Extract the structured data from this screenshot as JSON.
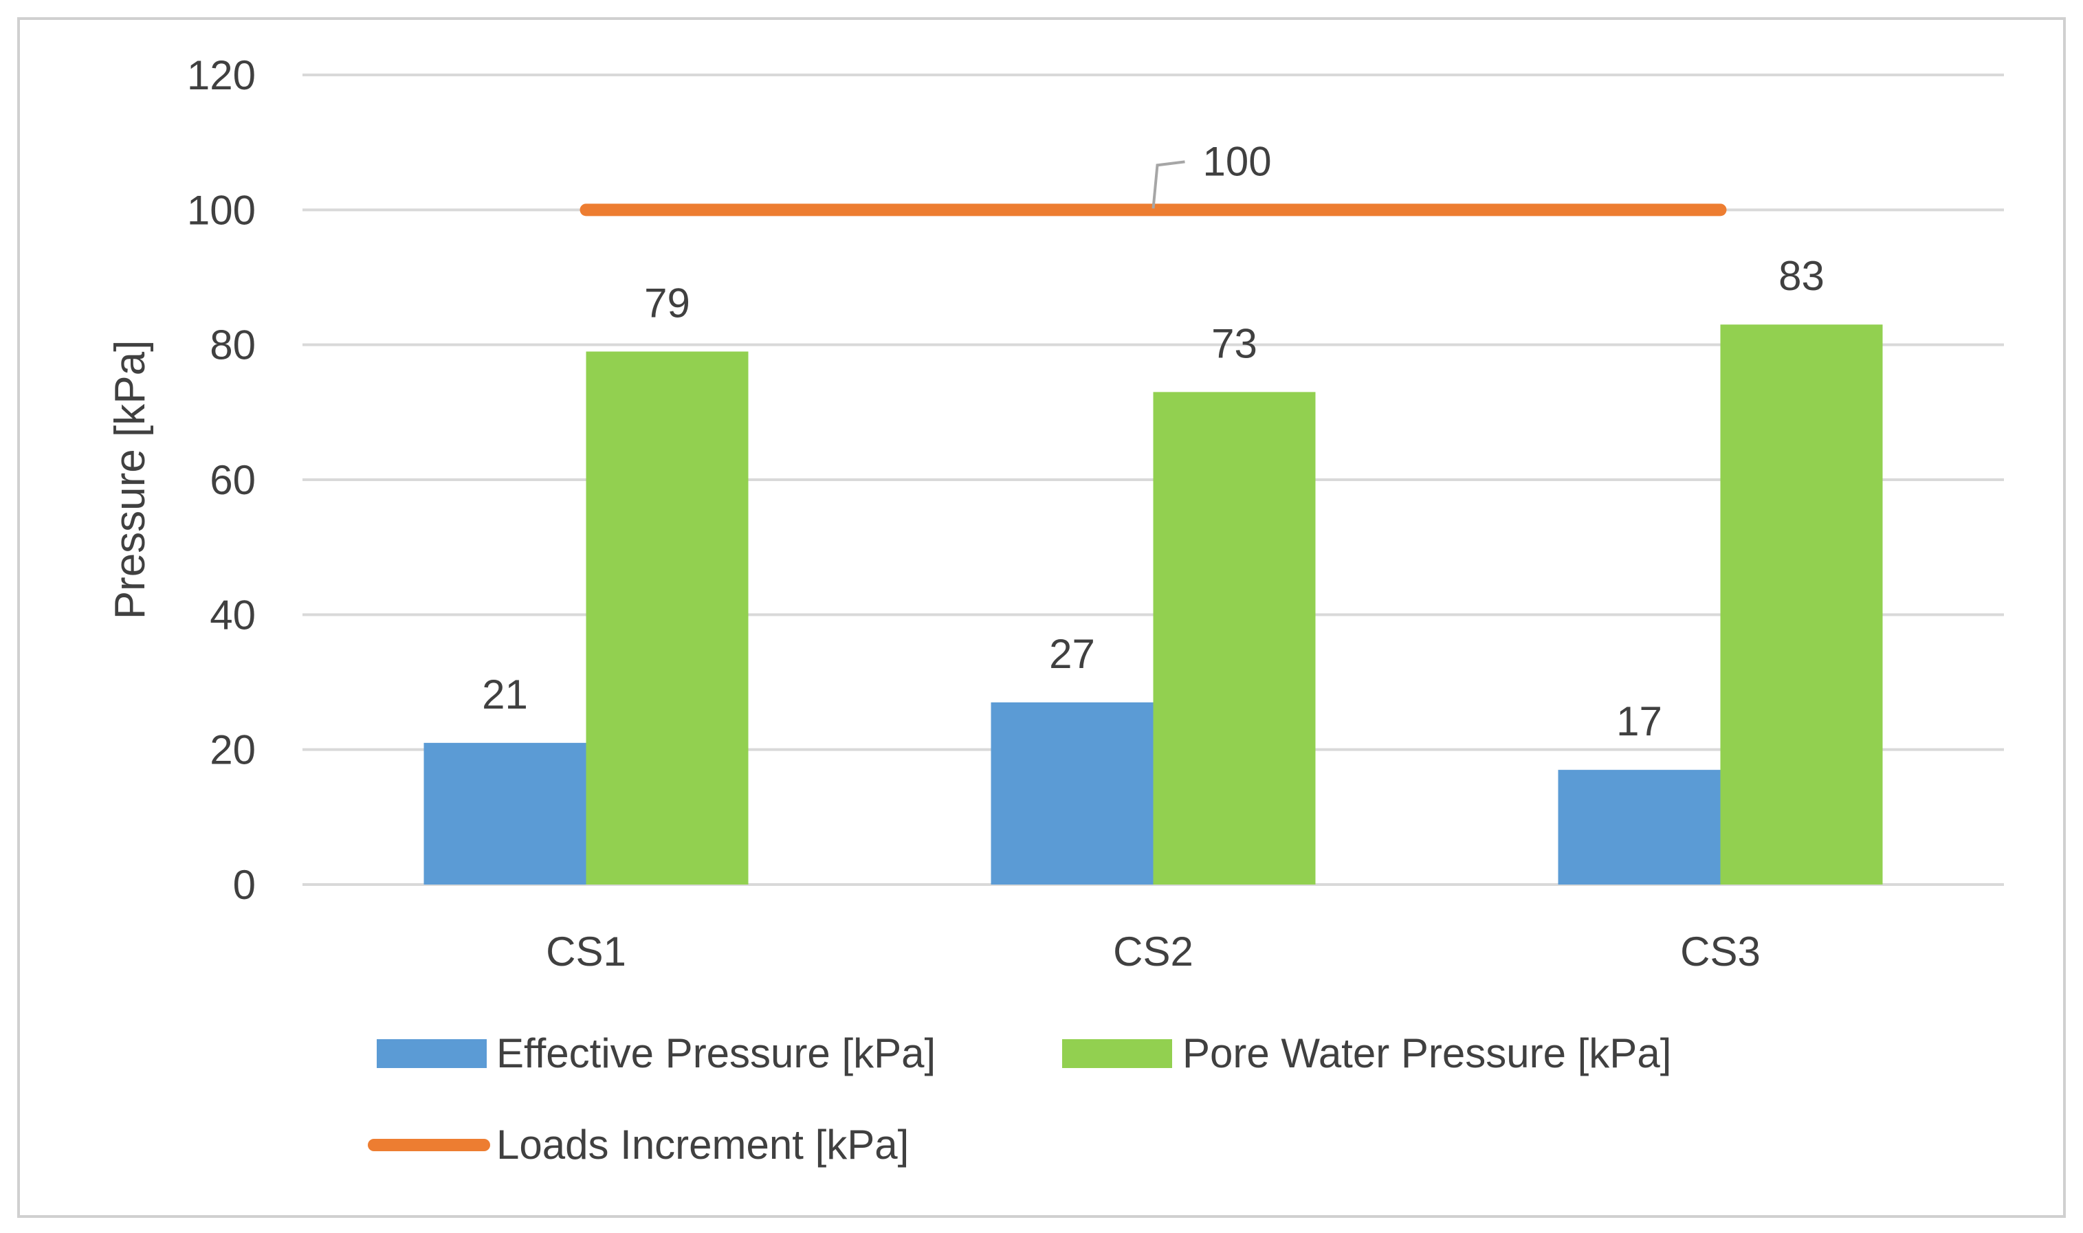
{
  "chart_data": {
    "type": "bar",
    "title": "",
    "xlabel": "",
    "ylabel": "Pressure [kPa]",
    "ylim": [
      0,
      120
    ],
    "yticks": [
      0,
      20,
      40,
      60,
      80,
      100,
      120
    ],
    "grid": true,
    "legend_position": "bottom",
    "categories": [
      "CS1",
      "CS2",
      "CS3"
    ],
    "series": [
      {
        "name": "Effective Pressure [kPa]",
        "kind": "bar",
        "color": "#5B9BD5",
        "values": [
          21,
          27,
          17
        ],
        "labels": [
          "21",
          "27",
          "17"
        ]
      },
      {
        "name": "Pore Water Pressure [kPa]",
        "kind": "bar",
        "color": "#92D050",
        "values": [
          79,
          73,
          83
        ],
        "labels": [
          "79",
          "73",
          "83"
        ]
      },
      {
        "name": "Loads Increment [kPa]",
        "kind": "line",
        "color": "#ED7D31",
        "values": [
          100,
          100,
          100
        ],
        "annotation": "100"
      }
    ]
  },
  "colors": {
    "grid": "#D9D9D9",
    "frame": "#D0D0D0",
    "text": "#404040",
    "leader": "#A6A6A6"
  }
}
